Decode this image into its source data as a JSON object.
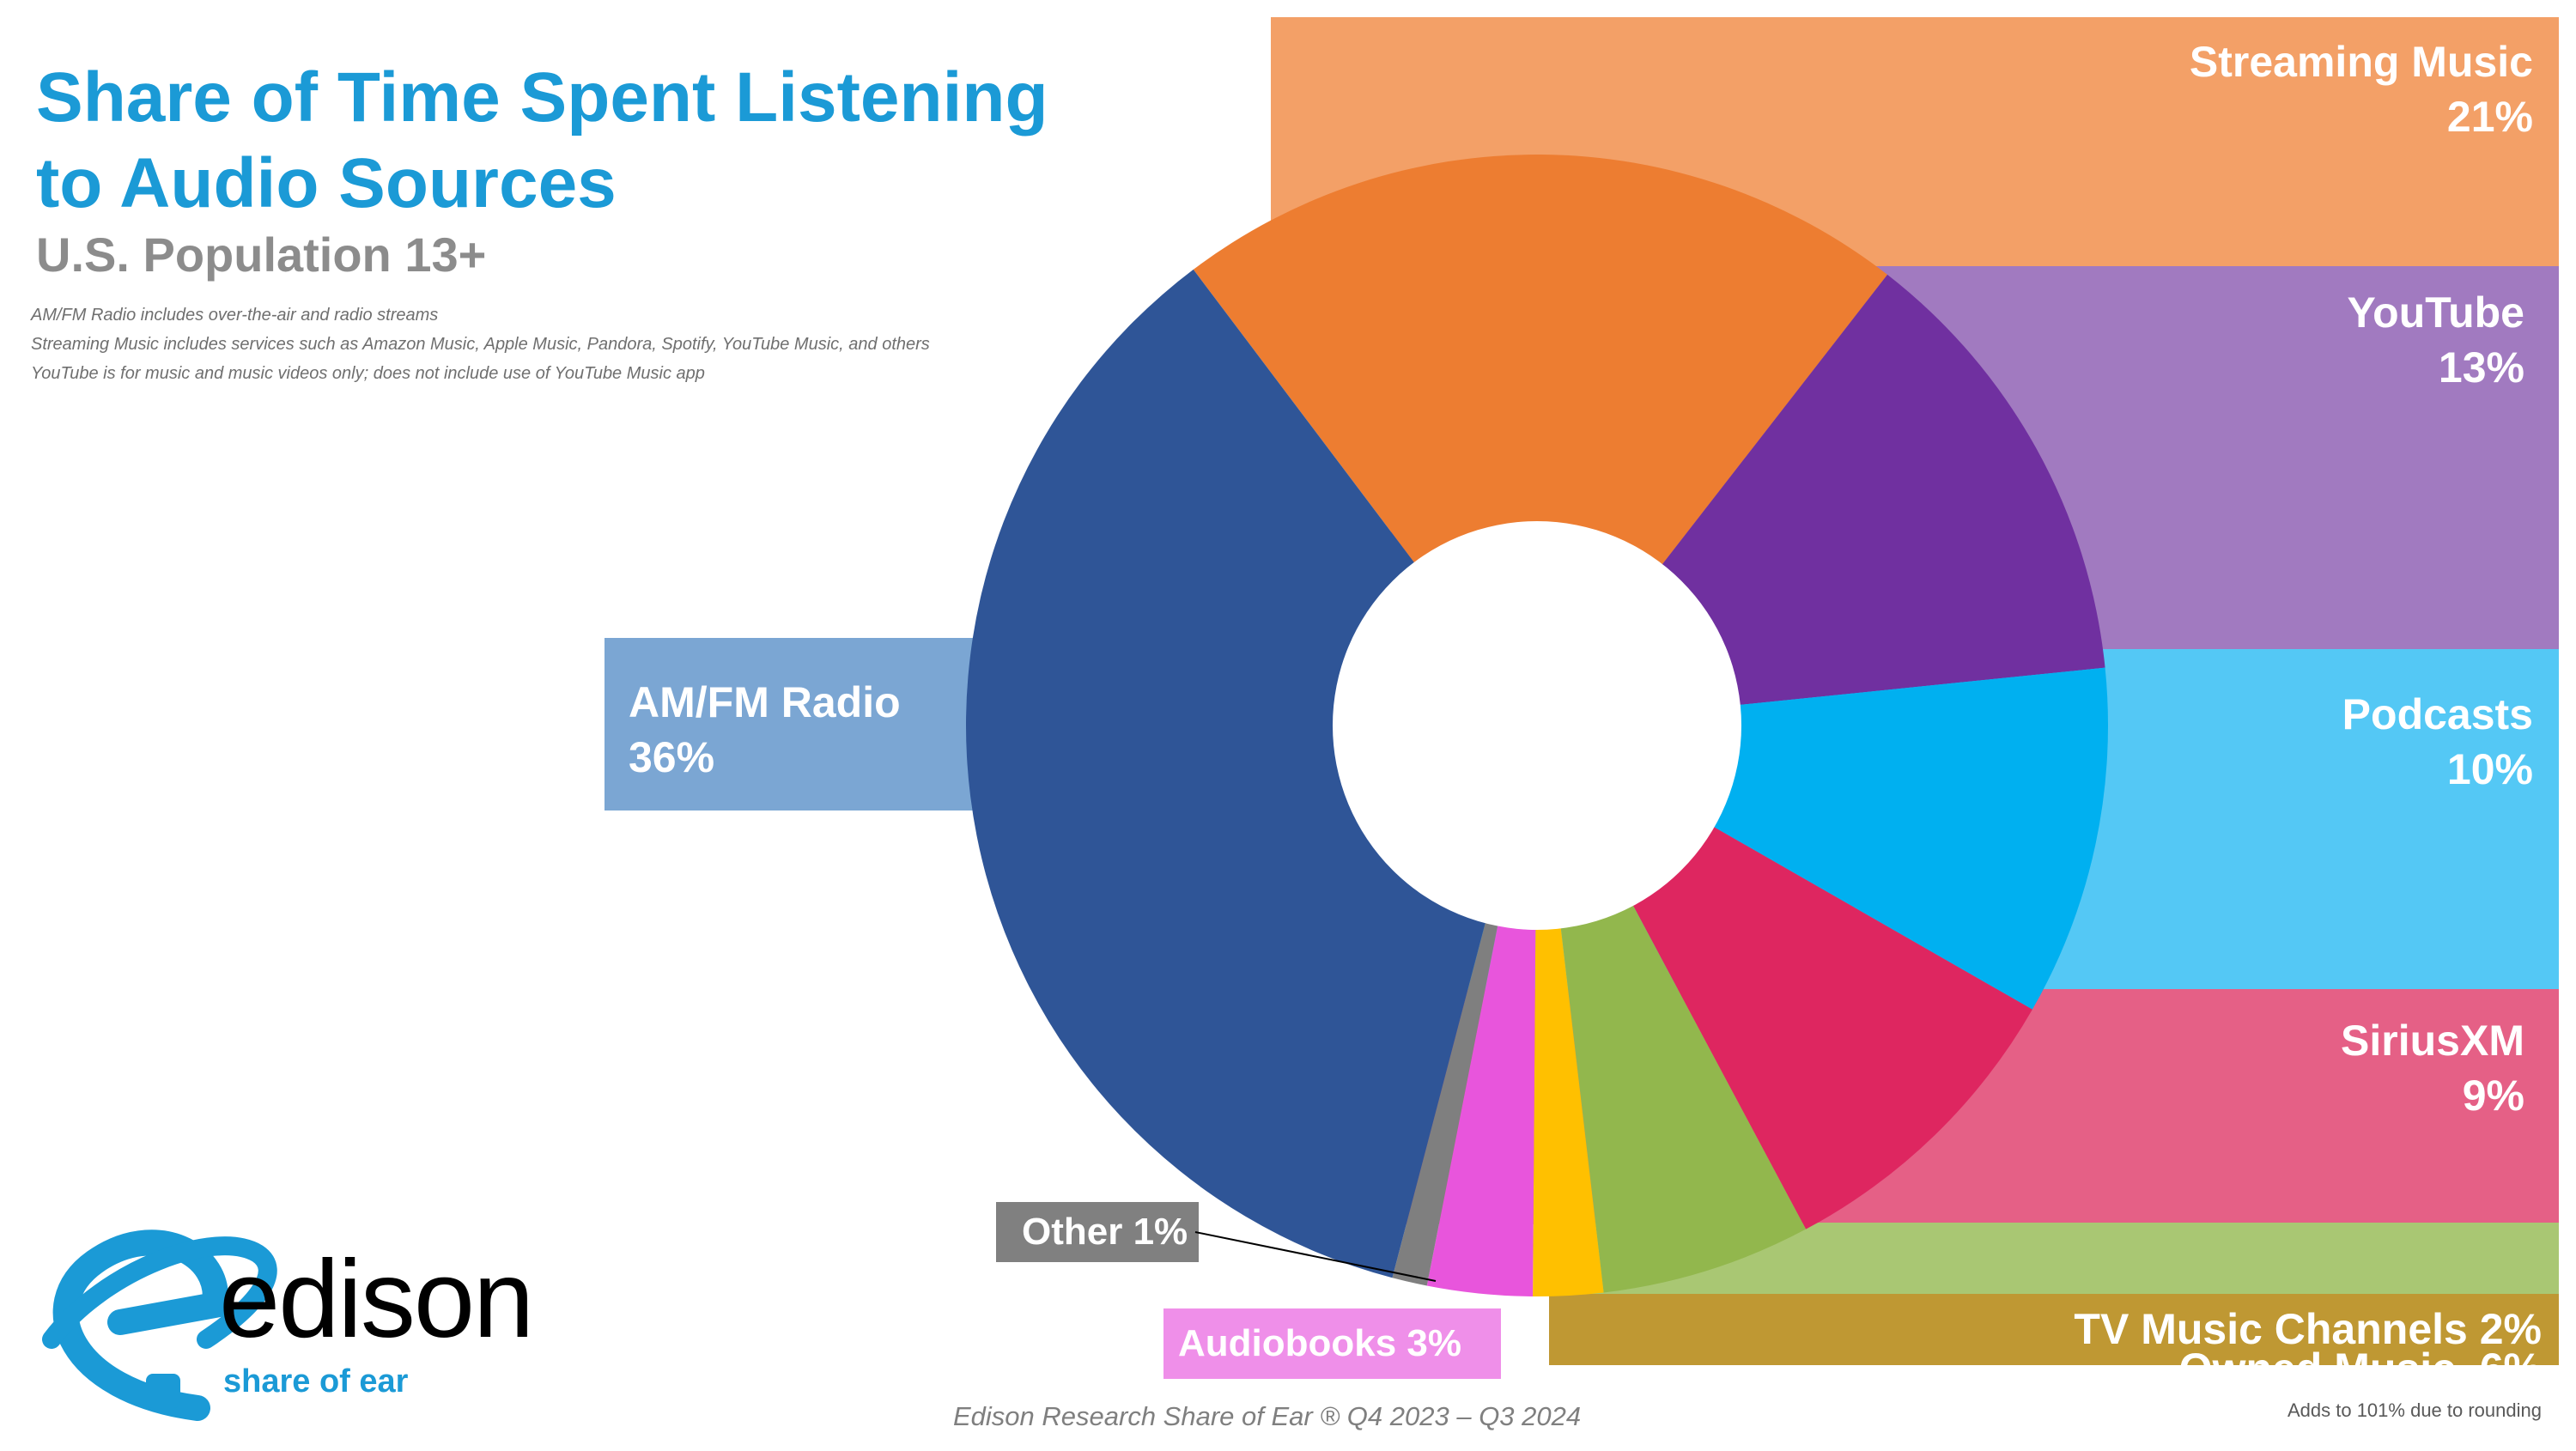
{
  "title_line1": "Share of Time Spent Listening",
  "title_line2": "to Audio Sources",
  "subtitle": "U.S. Population 13+",
  "notes": [
    "AM/FM Radio includes over-the-air and radio streams",
    "Streaming Music includes services such as Amazon Music, Apple Music, Pandora, Spotify, YouTube Music, and others",
    "YouTube is for music and music videos only; does not include use of YouTube Music app"
  ],
  "source": "Edison Research Share of Ear ® Q4 2023 – Q3 2024",
  "rounding_note": "Adds to 101% due to rounding",
  "logo": {
    "brand": "edison",
    "tagline": "share of ear",
    "color": "#1b9ad6"
  },
  "labels": {
    "streaming_name": "Streaming Music",
    "streaming_value": "21%",
    "youtube_name": "YouTube",
    "youtube_value": "13%",
    "podcasts_name": "Podcasts",
    "podcasts_value": "10%",
    "siriusxm_name": "SiriusXM",
    "siriusxm_value": "9%",
    "owned": "Owned Music  6%",
    "tv": "TV Music Channels 2%",
    "audiobooks": "Audiobooks 3%",
    "other": "Other 1%",
    "amfm_name": "AM/FM Radio",
    "amfm_value": "36%"
  },
  "chart_data": {
    "type": "pie",
    "variant": "donut",
    "slices": [
      {
        "label": "Streaming Music",
        "value": 21,
        "color": "#ed7d31",
        "label_color": "#f3a067"
      },
      {
        "label": "YouTube",
        "value": 13,
        "color": "#7030a0",
        "label_color": "#a17ac0"
      },
      {
        "label": "Podcasts",
        "value": 10,
        "color": "#00b0f0",
        "label_color": "#54c8f5"
      },
      {
        "label": "SiriusXM",
        "value": 9,
        "color": "#de2660",
        "label_color": "#e56086"
      },
      {
        "label": "Owned Music",
        "value": 6,
        "color": "#92b74d",
        "label_color": "#a9c773"
      },
      {
        "label": "TV Music Channels",
        "value": 2,
        "color": "#ffc000",
        "label_color": "#bf9833"
      },
      {
        "label": "Audiobooks",
        "value": 3,
        "color": "#e855dc",
        "label_color": "#ef8fe9"
      },
      {
        "label": "Other",
        "value": 1,
        "color": "#7f7f7f",
        "label_color": "#808080"
      },
      {
        "label": "AM/FM Radio",
        "value": 36,
        "color": "#2f5597",
        "label_color": "#7ba6d3"
      }
    ]
  }
}
